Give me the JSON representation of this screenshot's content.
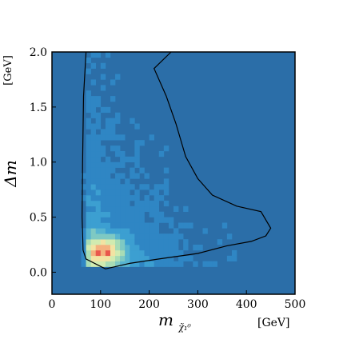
{
  "chart_data": {
    "type": "heatmap",
    "title": "",
    "xlabel": "m_{χ̃₁⁰}",
    "xlabel_main": "m",
    "xlabel_sub": "χ̃₁⁰",
    "x_unit": "[GeV]",
    "ylabel": "Δm",
    "y_unit": "[GeV]",
    "xlim": [
      0,
      500
    ],
    "ylim": [
      -0.2,
      2.0
    ],
    "x_ticks": [
      0,
      100,
      200,
      300,
      400,
      500
    ],
    "y_ticks": [
      0.0,
      0.5,
      1.0,
      1.5,
      2.0
    ],
    "x_tick_labels": [
      "0",
      "100",
      "200",
      "300",
      "400",
      "500"
    ],
    "y_tick_labels": [
      "0.0",
      "0.5",
      "1.0",
      "1.5",
      "2.0"
    ],
    "grid": false,
    "legend": "none",
    "colormap": [
      "#2b6ea8",
      "#2f86c4",
      "#3c9fd1",
      "#57b4d0",
      "#7ec9c3",
      "#a8dcb5",
      "#d1ebb0",
      "#f2e3a3",
      "#f4b17f",
      "#e9574c"
    ],
    "background_color": "#2b6ea8",
    "density_peak": {
      "x": 110,
      "y": 0.2
    },
    "contour_color": "#000000",
    "contour_approx": [
      [
        70,
        2.0
      ],
      [
        65,
        1.6
      ],
      [
        63,
        1.0
      ],
      [
        62,
        0.5
      ],
      [
        64,
        0.2
      ],
      [
        70,
        0.12
      ],
      [
        110,
        0.03
      ],
      [
        160,
        0.08
      ],
      [
        220,
        0.12
      ],
      [
        300,
        0.17
      ],
      [
        360,
        0.24
      ],
      [
        410,
        0.28
      ],
      [
        440,
        0.33
      ],
      [
        450,
        0.4
      ],
      [
        430,
        0.55
      ],
      [
        380,
        0.6
      ],
      [
        330,
        0.7
      ],
      [
        300,
        0.85
      ],
      [
        275,
        1.05
      ],
      [
        255,
        1.35
      ],
      [
        235,
        1.6
      ],
      [
        210,
        1.85
      ],
      [
        245,
        2.0
      ]
    ]
  }
}
